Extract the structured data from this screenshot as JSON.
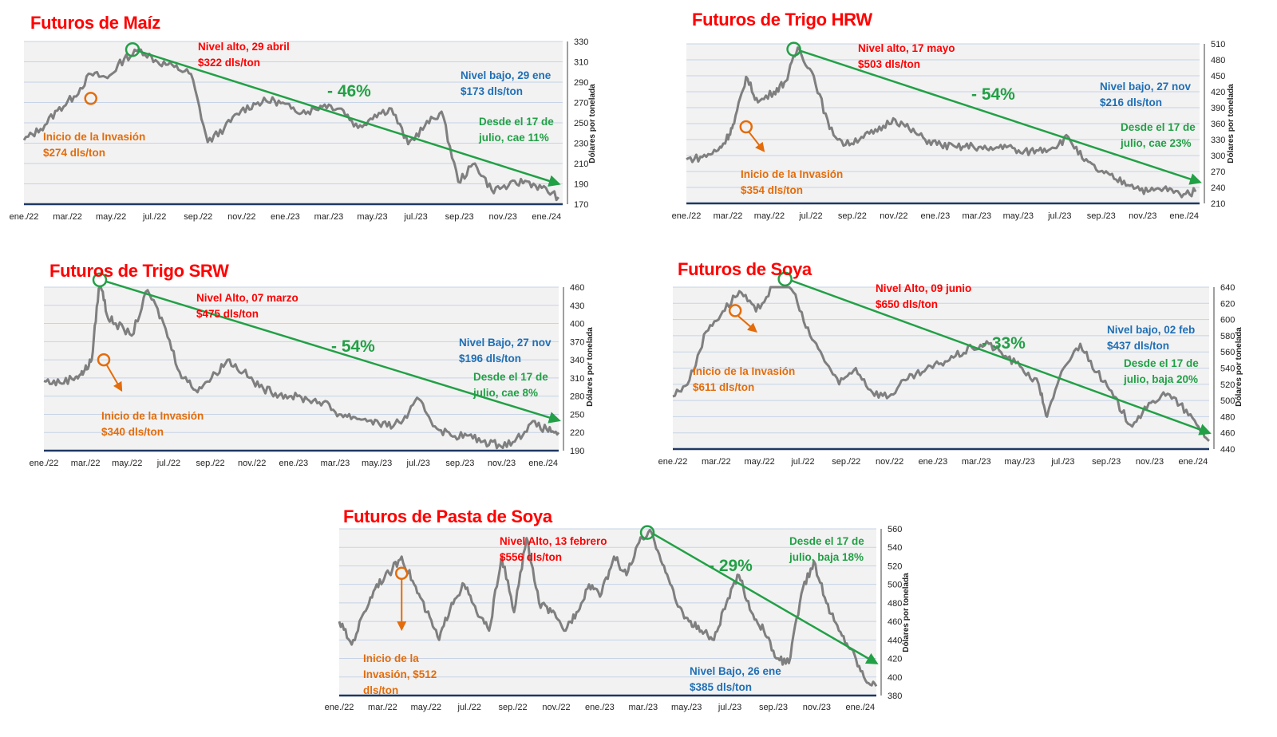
{
  "chart_data": [
    {
      "type": "line",
      "title": "Futuros de Maíz",
      "ylabel": "Dólares por tonelada",
      "ylim": [
        170,
        330
      ],
      "yticks": [
        170,
        190,
        210,
        230,
        250,
        270,
        290,
        310,
        330
      ],
      "xticks": [
        "ene./22",
        "mar./22",
        "may./22",
        "jul./22",
        "sep./22",
        "nov./22",
        "ene./23",
        "mar./23",
        "may./23",
        "jul./23",
        "sep./23",
        "nov./23",
        "ene./24"
      ],
      "grid": true,
      "series": [
        {
          "x": [
            0,
            0.4,
            0.8,
            1.2,
            1.6,
            2.0,
            2.4,
            2.8,
            3.2,
            3.6,
            4.0,
            4.4,
            4.8,
            5.2,
            5.6,
            6.0,
            6.4,
            6.8,
            7.2,
            7.6,
            8.0,
            8.4,
            8.8,
            9.2,
            9.6,
            10.0,
            10.4,
            10.8,
            11.2,
            11.6,
            12.0,
            12.4,
            12.8
          ],
          "values": [
            233,
            244,
            262,
            276,
            298,
            294,
            313,
            322,
            310,
            305,
            298,
            231,
            245,
            262,
            270,
            272,
            264,
            261,
            268,
            264,
            245,
            258,
            264,
            229,
            247,
            261,
            192,
            210,
            184,
            188,
            193,
            186,
            177
          ]
        }
      ],
      "annotations": [
        {
          "lines": [
            "Nivel alto, 29 abril",
            "$322 dls/ton"
          ],
          "color": "#ff0000"
        },
        {
          "lines": [
            "Nivel bajo, 29 ene",
            "$173 dls/ton"
          ],
          "color": "#1f6fb5"
        },
        {
          "lines": [
            "Desde el 17 de",
            "julio, cae 11%"
          ],
          "color": "#22a046"
        },
        {
          "lines": [
            "Inicio de la Invasión",
            "$274 dls/ton"
          ],
          "color": "#e46c0a"
        }
      ],
      "change_label": "- 46%",
      "trend": {
        "from": [
          2.6,
          322
        ],
        "to": [
          12.8,
          190
        ]
      }
    },
    {
      "type": "line",
      "title": "Futuros de Trigo HRW",
      "ylabel": "Dólares por tonelada",
      "ylim": [
        210,
        510
      ],
      "yticks": [
        210,
        240,
        270,
        300,
        330,
        360,
        390,
        420,
        450,
        480,
        510
      ],
      "xticks": [
        "ene./22",
        "mar./22",
        "may./22",
        "jul./22",
        "sep./22",
        "nov./22",
        "ene./23",
        "mar./23",
        "may./23",
        "jul./23",
        "sep./23",
        "nov./23",
        "ene./24"
      ],
      "grid": true,
      "series": [
        {
          "x": [
            0,
            0.4,
            0.8,
            1.0,
            1.2,
            1.5,
            1.8,
            2.2,
            2.5,
            2.8,
            3.2,
            3.6,
            4.0,
            4.4,
            4.8,
            5.2,
            5.6,
            6.0,
            6.4,
            6.8,
            7.2,
            7.6,
            8.0,
            8.4,
            8.8,
            9.2,
            9.6,
            10.0,
            10.4,
            10.8,
            11.2,
            11.6,
            12.0,
            12.4,
            12.8
          ],
          "values": [
            293,
            297,
            310,
            330,
            360,
            448,
            400,
            420,
            440,
            503,
            450,
            350,
            320,
            335,
            345,
            370,
            350,
            330,
            320,
            315,
            318,
            310,
            320,
            305,
            310,
            315,
            335,
            290,
            270,
            255,
            245,
            232,
            238,
            228,
            232
          ]
        }
      ],
      "annotations": [
        {
          "lines": [
            "Nivel alto, 17 mayo",
            "$503 dls/ton"
          ],
          "color": "#ff0000"
        },
        {
          "lines": [
            "Nivel bajo, 27 nov",
            "$216 dls/ton"
          ],
          "color": "#1f6fb5"
        },
        {
          "lines": [
            "Desde el 17 de",
            "julio, cae 23%"
          ],
          "color": "#22a046"
        },
        {
          "lines": [
            "Inicio de la Invasión",
            "$354 dls/ton"
          ],
          "color": "#e46c0a"
        }
      ],
      "change_label": "- 54%",
      "trend": {
        "from": [
          2.7,
          500
        ],
        "to": [
          12.9,
          250
        ]
      }
    },
    {
      "type": "line",
      "title": "Futuros de Trigo SRW",
      "ylabel": "Dólares por tonelada",
      "ylim": [
        190,
        460
      ],
      "yticks": [
        190,
        220,
        250,
        280,
        310,
        340,
        370,
        400,
        430,
        460
      ],
      "xticks": [
        "ene./22",
        "mar./22",
        "may./22",
        "jul./22",
        "sep./22",
        "nov./22",
        "ene./23",
        "mar./23",
        "may./23",
        "jul./23",
        "sep./23",
        "nov./23",
        "ene./24"
      ],
      "grid": true,
      "series": [
        {
          "x": [
            0,
            0.4,
            0.8,
            1.0,
            1.2,
            1.4,
            1.6,
            1.8,
            2.2,
            2.6,
            3.0,
            3.4,
            3.8,
            4.2,
            4.6,
            5.0,
            5.4,
            5.8,
            6.2,
            6.6,
            7.0,
            7.4,
            7.8,
            8.2,
            8.6,
            9.0,
            9.4,
            9.8,
            10.2,
            10.6,
            11.0,
            11.4,
            11.8,
            12.2,
            12.6,
            12.9
          ],
          "values": [
            305,
            302,
            312,
            320,
            340,
            475,
            410,
            400,
            380,
            455,
            400,
            320,
            290,
            310,
            340,
            320,
            295,
            285,
            280,
            275,
            270,
            250,
            245,
            240,
            230,
            240,
            275,
            230,
            215,
            215,
            205,
            200,
            205,
            235,
            225,
            220
          ]
        }
      ],
      "annotations": [
        {
          "lines": [
            "Nivel Alto, 07 marzo",
            "$475 dls/ton"
          ],
          "color": "#ff0000"
        },
        {
          "lines": [
            "Nivel Bajo, 27 nov",
            "$196 dls/ton"
          ],
          "color": "#1f6fb5"
        },
        {
          "lines": [
            "Desde el 17 de",
            "julio, cae 8%"
          ],
          "color": "#22a046"
        },
        {
          "lines": [
            "Inicio de la Invasión",
            "$340 dls/ton"
          ],
          "color": "#e46c0a"
        }
      ],
      "change_label": "- 54%",
      "trend": {
        "from": [
          1.4,
          472
        ],
        "to": [
          12.9,
          240
        ]
      }
    },
    {
      "type": "line",
      "title": "Futuros de Soya",
      "ylabel": "Dólares por tonelada",
      "ylim": [
        440,
        640
      ],
      "yticks": [
        440,
        460,
        480,
        500,
        520,
        540,
        560,
        580,
        600,
        620,
        640
      ],
      "xticks": [
        "ene./22",
        "mar./22",
        "may./22",
        "jul./22",
        "sep./22",
        "nov./22",
        "ene./23",
        "mar./23",
        "may./23",
        "jul./23",
        "sep./23",
        "nov./23",
        "ene./24"
      ],
      "grid": true,
      "series": [
        {
          "x": [
            0,
            0.4,
            0.8,
            1.2,
            1.6,
            2.0,
            2.4,
            2.8,
            3.2,
            3.6,
            4.0,
            4.4,
            4.8,
            5.2,
            5.6,
            6.0,
            6.4,
            6.8,
            7.2,
            7.6,
            8.0,
            8.4,
            8.8,
            9.0,
            9.4,
            9.8,
            10.2,
            10.6,
            11.0,
            11.4,
            11.8,
            12.2,
            12.6,
            12.9
          ],
          "values": [
            505,
            525,
            585,
            610,
            635,
            610,
            640,
            650,
            590,
            555,
            520,
            540,
            510,
            505,
            525,
            535,
            545,
            555,
            565,
            570,
            555,
            540,
            520,
            480,
            540,
            570,
            535,
            505,
            470,
            490,
            510,
            495,
            470,
            450
          ]
        }
      ],
      "annotations": [
        {
          "lines": [
            "Nivel Alto, 09 junio",
            "$650 dls/ton"
          ],
          "color": "#ff0000"
        },
        {
          "lines": [
            "Nivel bajo, 02 feb",
            "$437 dls/ton"
          ],
          "color": "#1f6fb5"
        },
        {
          "lines": [
            "Desde el 17 de",
            "julio, baja 20%"
          ],
          "color": "#22a046"
        },
        {
          "lines": [
            "Inicio de la Invasión",
            "$611 dls/ton"
          ],
          "color": "#e46c0a"
        }
      ],
      "change_label": "- 33%",
      "trend": {
        "from": [
          2.7,
          650
        ],
        "to": [
          12.9,
          460
        ]
      }
    },
    {
      "type": "line",
      "title": "Futuros de Pasta de Soya",
      "ylabel": "Dólares por tonelada",
      "ylim": [
        380,
        560
      ],
      "yticks": [
        380,
        400,
        420,
        440,
        460,
        480,
        500,
        520,
        540,
        560
      ],
      "xticks": [
        "ene./22",
        "mar./22",
        "may./22",
        "jul./22",
        "sep./22",
        "nov./22",
        "ene./23",
        "mar./23",
        "may./23",
        "jul./23",
        "sep./23",
        "nov./23",
        "ene./24"
      ],
      "grid": true,
      "series": [
        {
          "x": [
            0,
            0.3,
            0.6,
            0.9,
            1.2,
            1.5,
            1.8,
            2.1,
            2.4,
            2.7,
            3.0,
            3.3,
            3.6,
            3.9,
            4.2,
            4.5,
            4.8,
            5.1,
            5.4,
            5.7,
            6.0,
            6.3,
            6.6,
            6.9,
            7.2,
            7.5,
            7.8,
            8.1,
            8.4,
            8.7,
            9.0,
            9.3,
            9.6,
            9.9,
            10.2,
            10.5,
            10.8,
            11.1,
            11.4,
            11.7,
            12.0,
            12.3,
            12.6,
            12.9
          ],
          "values": [
            460,
            435,
            470,
            500,
            512,
            530,
            500,
            470,
            440,
            480,
            500,
            470,
            450,
            530,
            470,
            550,
            480,
            470,
            450,
            470,
            500,
            490,
            530,
            510,
            545,
            556,
            520,
            480,
            460,
            450,
            440,
            480,
            510,
            470,
            450,
            420,
            415,
            490,
            525,
            480,
            450,
            430,
            400,
            390
          ]
        }
      ],
      "annotations": [
        {
          "lines": [
            "Nivel Alto, 13 febrero",
            "$556 dls/ton"
          ],
          "color": "#ff0000"
        },
        {
          "lines": [
            "Nivel Bajo, 26 ene",
            "$385 dls/ton"
          ],
          "color": "#1f6fb5"
        },
        {
          "lines": [
            "Desde el 17 de",
            "julio, baja 18%"
          ],
          "color": "#22a046"
        },
        {
          "lines": [
            "Inicio de la",
            "Invasión, $512",
            "dls/ton"
          ],
          "color": "#e46c0a"
        }
      ],
      "change_label": "- 29%",
      "trend": {
        "from": [
          7.4,
          556
        ],
        "to": [
          12.9,
          415
        ]
      }
    }
  ],
  "colors": {
    "series_line": "#7f7f7f",
    "trend": "#22a046",
    "high_marker": "#22a046",
    "invasion_marker": "#e46c0a",
    "plot_background": "#f2f2f2",
    "gridline": "#c7d3e6",
    "axis_line": "#1f3864"
  }
}
